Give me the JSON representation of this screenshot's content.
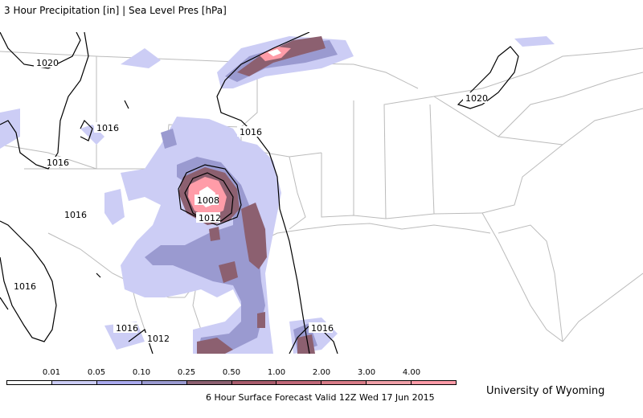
{
  "title": "3 Hour Precipitation [in] | Sea Level Pres [hPa]",
  "valid_time": "6 Hour Surface Forecast Valid 12Z Wed 17 Jun 2015",
  "credit": "University of Wyoming",
  "legend": {
    "labels": [
      "0.01",
      "0.05",
      "0.10",
      "0.25",
      "0.50",
      "1.00",
      "2.00",
      "3.00",
      "4.00"
    ],
    "colors": [
      "#ffffff",
      "#cccdf5",
      "#aaaaee",
      "#9a9ad0",
      "#8c6070",
      "#a85c6c",
      "#c06878",
      "#d87c88",
      "#f0a0a8",
      "#ff9ca8"
    ]
  },
  "isobar_labels": [
    "1020",
    "1016",
    "1016",
    "1016",
    "1016",
    "1016",
    "1008",
    "1012",
    "1016",
    "1012",
    "1016",
    "1020"
  ],
  "colors": {
    "land": "#ffffff",
    "borders": "#bbbbbb",
    "isobars": "#000000",
    "precip_light": "#cccdf5",
    "precip_mid": "#a0a0d0",
    "precip_heavy": "#8c6070",
    "precip_max": "#ff9ca8"
  }
}
